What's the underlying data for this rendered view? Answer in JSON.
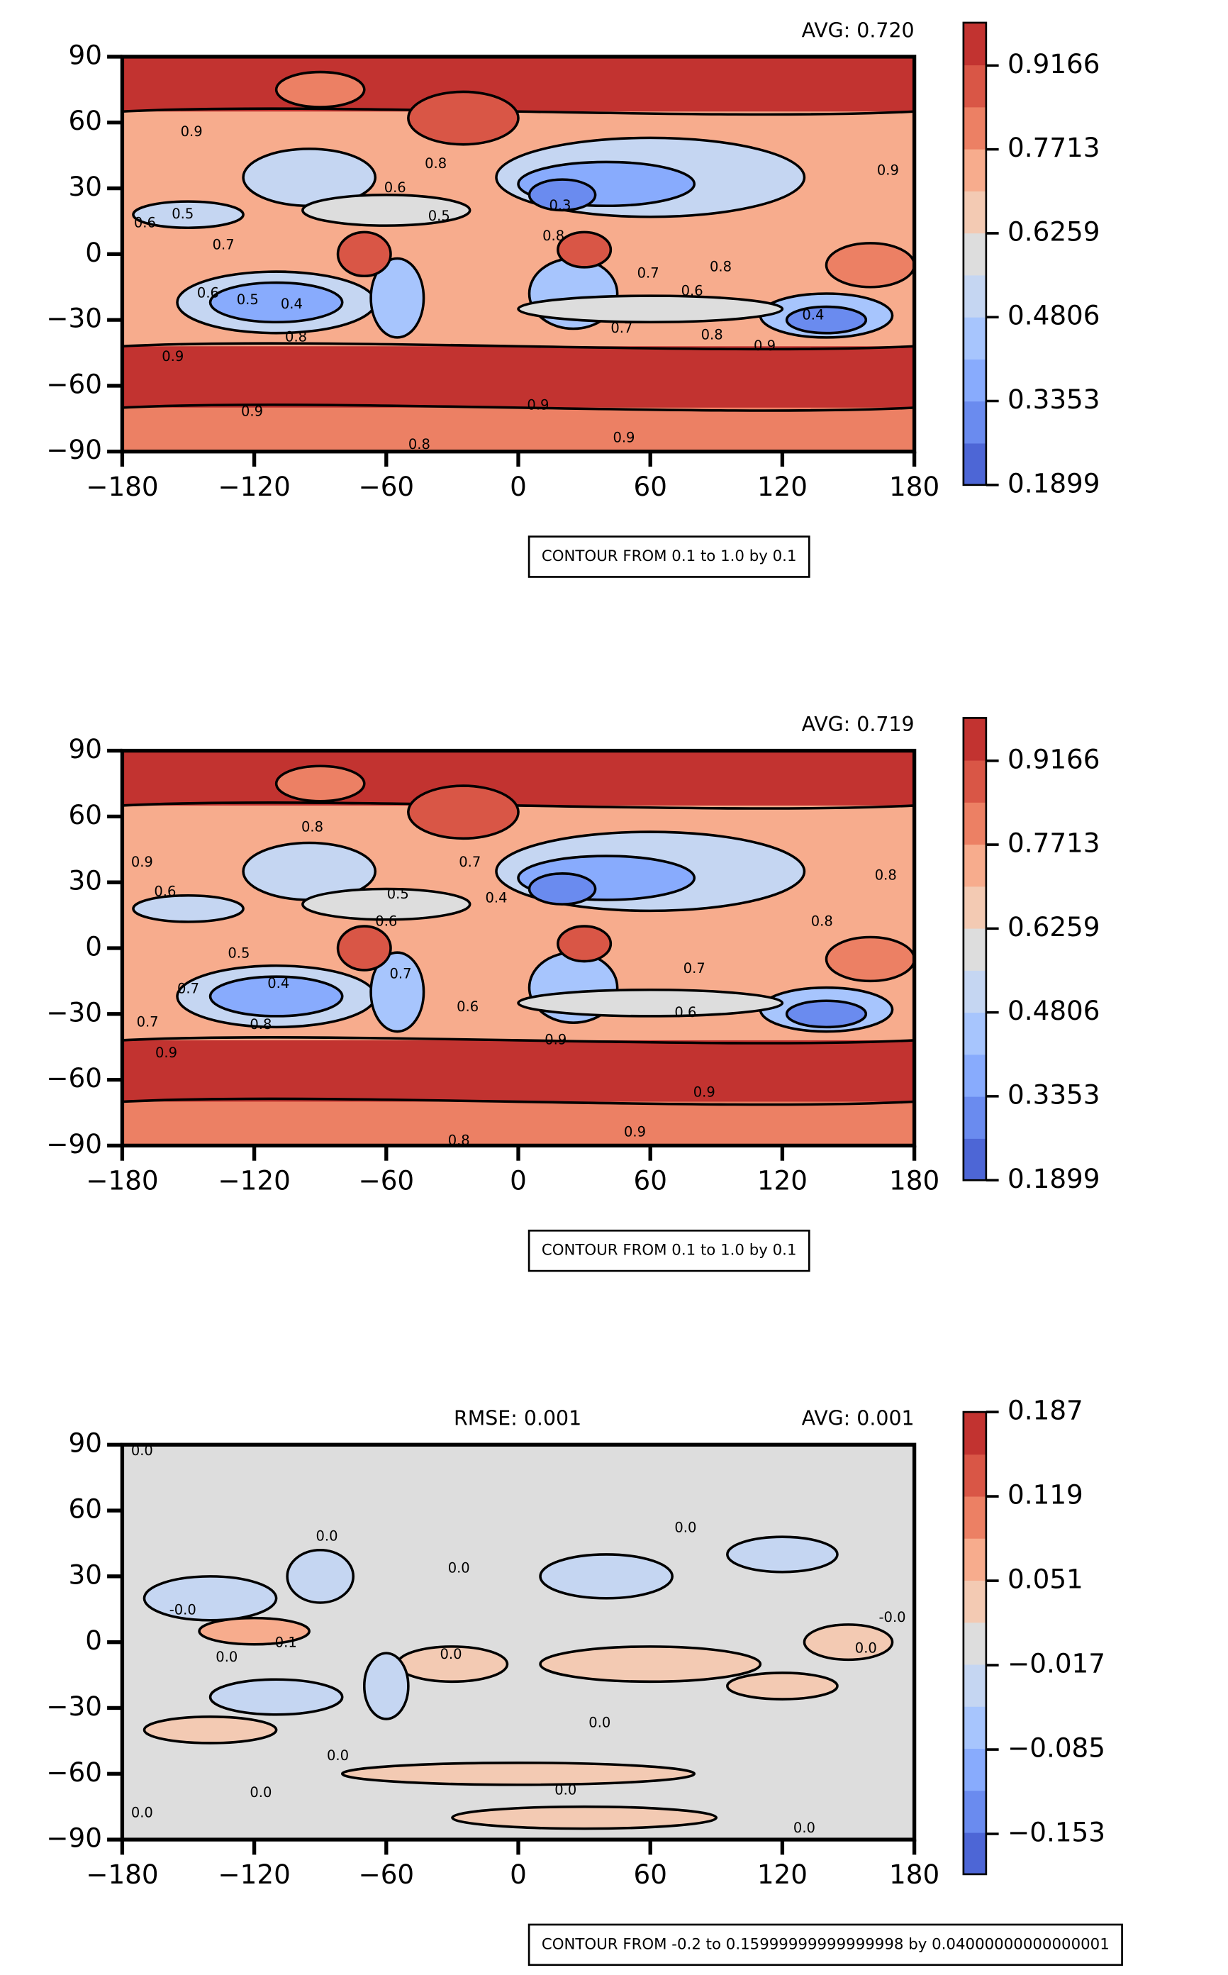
{
  "chart_data": [
    {
      "type": "contour",
      "avg": "AVG: 0.720",
      "note": "CONTOUR FROM 0.1 to 1.0 by 0.1",
      "xlim": [
        -180,
        180
      ],
      "ylim": [
        -90,
        90
      ],
      "xticks": [
        {
          "value": -180,
          "label": "−180"
        },
        {
          "value": -120,
          "label": "−120"
        },
        {
          "value": -60,
          "label": "−60"
        },
        0,
        60,
        120,
        180
      ],
      "yticks": [
        {
          "value": -90,
          "label": "−90"
        },
        {
          "value": -60,
          "label": "−60"
        },
        {
          "value": -30,
          "label": "−30"
        },
        0,
        30,
        60,
        90
      ],
      "colorbar": {
        "ylim": [
          0.1899,
          0.9908
        ],
        "yticks": [
          0.1899,
          0.3353,
          0.4806,
          0.6259,
          0.7713,
          0.9166
        ],
        "colors": [
          "#4d66d6",
          "#6a8bef",
          "#88abfd",
          "#a7c5fd",
          "#c5d6f2",
          "#dddddd",
          "#f3cab3",
          "#f7ac8d",
          "#ec8064",
          "#d95646",
          "#c23330"
        ]
      },
      "contour_labels": {
        "x": [
          -148.5,
          -169.7,
          -152.5,
          -134,
          -141,
          -123,
          -103,
          -157,
          -101,
          -37.5,
          -56,
          -36,
          19,
          16,
          59,
          79,
          92,
          47,
          88,
          112,
          134,
          168,
          -121,
          9,
          48,
          -45
        ],
        "y": [
          55.5,
          14,
          18,
          4,
          -18,
          -21,
          -23,
          -47,
          -38,
          41,
          30,
          17,
          22,
          8,
          -9,
          -17,
          -6,
          -34,
          -37,
          -42,
          -28,
          38,
          -72,
          -69,
          -84,
          -87
        ],
        "values": [
          0.9,
          0.6,
          0.5,
          0.7,
          0.6,
          0.5,
          0.4,
          0.9,
          0.8,
          0.8,
          0.6,
          0.5,
          0.3,
          0.8,
          0.7,
          0.6,
          0.8,
          0.7,
          0.8,
          0.9,
          0.4,
          0.9,
          0.9,
          0.9,
          0.9,
          0.8
        ]
      }
    },
    {
      "type": "contour",
      "avg": "AVG: 0.719",
      "note": "CONTOUR FROM 0.1 to 1.0 by 0.1",
      "xlim": [
        -180,
        180
      ],
      "ylim": [
        -90,
        90
      ],
      "xticks": [
        {
          "value": -180,
          "label": "−180"
        },
        {
          "value": -120,
          "label": "−120"
        },
        {
          "value": -60,
          "label": "−60"
        },
        0,
        60,
        120,
        180
      ],
      "yticks": [
        {
          "value": -90,
          "label": "−90"
        },
        {
          "value": -60,
          "label": "−60"
        },
        {
          "value": -30,
          "label": "−30"
        },
        0,
        30,
        60,
        90
      ],
      "colorbar": {
        "ylim": [
          0.1899,
          0.9908
        ],
        "yticks": [
          0.1899,
          0.3353,
          0.4806,
          0.6259,
          0.7713,
          0.9166
        ],
        "colors": [
          "#4d66d6",
          "#6a8bef",
          "#88abfd",
          "#a7c5fd",
          "#c5d6f2",
          "#dddddd",
          "#f3cab3",
          "#f7ac8d",
          "#ec8064",
          "#d95646",
          "#c23330"
        ]
      },
      "contour_labels": {
        "x": [
          -171,
          -160.5,
          -127,
          -109,
          -150,
          -168.5,
          -160,
          -117,
          -93.6,
          -54.7,
          -22,
          -10,
          -60,
          -53.5,
          -23,
          80,
          138,
          167,
          76,
          17,
          53,
          -27,
          84.5
        ],
        "y": [
          39,
          25.6,
          -2.6,
          -16.4,
          -18.7,
          -34,
          -48,
          -35,
          55,
          24.4,
          39,
          22.7,
          12,
          -12,
          -27,
          -9.5,
          12,
          33,
          -29.6,
          -42,
          -84,
          -88,
          -66
        ],
        "values": [
          0.9,
          0.6,
          0.5,
          0.4,
          0.7,
          0.7,
          0.9,
          0.8,
          0.8,
          0.5,
          0.7,
          0.4,
          0.6,
          0.7,
          0.6,
          0.7,
          0.8,
          0.8,
          0.6,
          0.9,
          0.9,
          0.8,
          0.9
        ]
      }
    },
    {
      "type": "contour",
      "title": "RMSE: 0.001",
      "avg": "AVG: 0.001",
      "note": "CONTOUR FROM -0.2 to 0.15999999999999998 by 0.04000000000000001",
      "xlim": [
        -180,
        180
      ],
      "ylim": [
        -90,
        90
      ],
      "xticks": [
        {
          "value": -180,
          "label": "−180"
        },
        {
          "value": -120,
          "label": "−120"
        },
        {
          "value": -60,
          "label": "−60"
        },
        0,
        60,
        120,
        180
      ],
      "yticks": [
        {
          "value": -90,
          "label": "−90"
        },
        {
          "value": -60,
          "label": "−60"
        },
        {
          "value": -30,
          "label": "−30"
        },
        0,
        30,
        60,
        90
      ],
      "colorbar": {
        "ylim": [
          -0.1855,
          0.187
        ],
        "yticks": [
          {
            "value": -0.153,
            "label": "−0.153"
          },
          {
            "value": -0.085,
            "label": "−0.085"
          },
          {
            "value": -0.017,
            "label": "−0.017"
          },
          0.051,
          0.119,
          0.187
        ],
        "colors": [
          "#4d66d6",
          "#6a8bef",
          "#88abfd",
          "#a7c5fd",
          "#c5d6f2",
          "#dddddd",
          "#f3cab3",
          "#f7ac8d",
          "#ec8064",
          "#d95646",
          "#c23330"
        ]
      },
      "contour_labels": {
        "x": [
          -171,
          -87,
          76,
          -27,
          -152.5,
          -105.6,
          -132.5,
          -30.6,
          37,
          158,
          170,
          -82,
          -117,
          21.5,
          130,
          -171
        ],
        "y": [
          87,
          48,
          52,
          33.5,
          14.5,
          -0.5,
          -7,
          -5.8,
          -37,
          -3,
          11,
          -52,
          -68.8,
          -67.7,
          -85,
          -78
        ],
        "values": [
          0,
          0,
          0,
          0,
          0,
          0.1,
          0,
          0,
          0,
          0,
          0,
          0,
          0,
          0,
          0,
          0
        ],
        "value_labels": [
          "0.0",
          "0.0",
          "0.0",
          "0.0",
          "-0.0",
          "0.1",
          "0.0",
          "0.0",
          "0.0",
          "0.0",
          "-0.0",
          "0.0",
          "0.0",
          "0.0",
          "0.0",
          "0.0"
        ]
      }
    }
  ]
}
